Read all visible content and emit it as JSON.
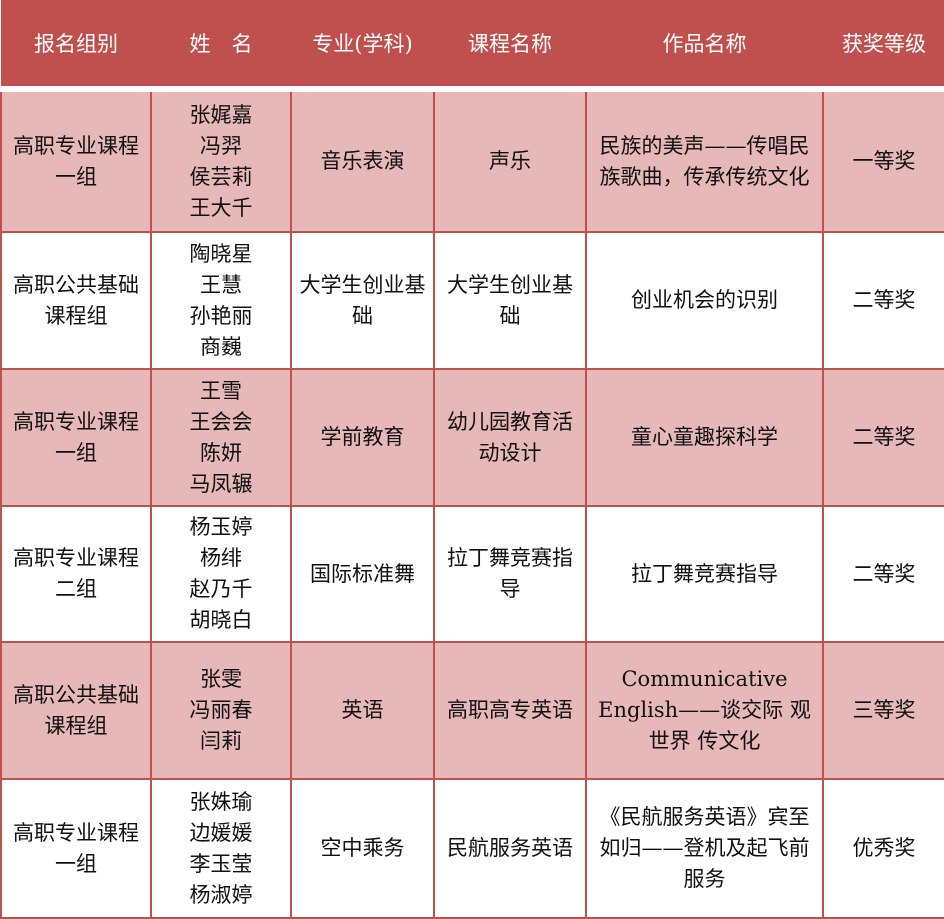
{
  "headers": [
    "报名组别",
    "姓　名",
    "专业(学科)",
    "课程名称",
    "作品名称",
    "获奖等级"
  ],
  "rows": [
    {
      "group": "高职专业课程一组",
      "names": [
        "张娓嘉",
        "冯羿",
        "侯芸莉",
        "王大千"
      ],
      "major": "音乐表演",
      "course": "声乐",
      "work": "民族的美声——传唱民族歌曲，传承传统文化",
      "award": "一等奖"
    },
    {
      "group": "高职公共基础课程组",
      "names": [
        "陶晓星",
        "王慧",
        "孙艳丽",
        "商巍"
      ],
      "major": "大学生创业基础",
      "course": "大学生创业基础",
      "work": "创业机会的识别",
      "award": "二等奖"
    },
    {
      "group": "高职专业课程一组",
      "names": [
        "王雪",
        "王会会",
        "陈妍",
        "马凤辗"
      ],
      "major": "学前教育",
      "course": "幼儿园教育活动设计",
      "work": "童心童趣探科学",
      "award": "二等奖"
    },
    {
      "group": "高职专业课程二组",
      "names": [
        "杨玉婷",
        "杨绯",
        "赵乃千",
        "胡晓白"
      ],
      "major": "国际标准舞",
      "course": "拉丁舞竞赛指导",
      "work": "拉丁舞竞赛指导",
      "award": "二等奖"
    },
    {
      "group": "高职公共基础课程组",
      "names": [
        "张雯",
        "冯丽春",
        "闫莉"
      ],
      "major": "英语",
      "course": "高职高专英语",
      "work": "Communicative English——谈交际 观世界 传文化",
      "award": "三等奖"
    },
    {
      "group": "高职专业课程一组",
      "names": [
        "张姝瑜",
        "边媛媛",
        "李玉莹",
        "杨淑婷"
      ],
      "major": "空中乘务",
      "course": "民航服务英语",
      "work": "《民航服务英语》宾至如归——登机及起飞前服务",
      "award": "优秀奖"
    }
  ],
  "colors": {
    "header": "#c0504d",
    "pink_row": "#e6b8b7",
    "border": "#c0504d"
  }
}
